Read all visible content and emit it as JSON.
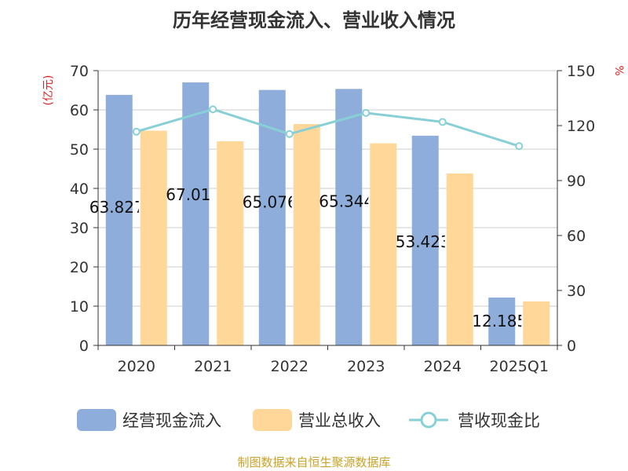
{
  "chart_data": {
    "type": "bar",
    "title": "历年经营现金流入、营业收入情况",
    "categories": [
      "2020",
      "2021",
      "2022",
      "2023",
      "2024",
      "2025Q1"
    ],
    "series": [
      {
        "name": "经营现金流入",
        "kind": "bar",
        "axis": "left",
        "color": "#8eaddb",
        "values": [
          63.827,
          67.01,
          65.076,
          65.344,
          53.423,
          12.185
        ],
        "labels": [
          "63.827",
          "67.01",
          "65.076",
          "65.344",
          "53.423",
          "12.185"
        ]
      },
      {
        "name": "营业总收入",
        "kind": "bar",
        "axis": "left",
        "color": "#ffd899",
        "values": [
          54.7,
          52.0,
          56.4,
          51.5,
          43.8,
          11.2
        ]
      },
      {
        "name": "营收现金比",
        "kind": "line",
        "axis": "right",
        "color": "#88d0d6",
        "values": [
          116.7,
          128.9,
          115.4,
          126.9,
          122.0,
          108.8
        ]
      }
    ],
    "y_left": {
      "label": "(亿元)",
      "min": 0,
      "max": 70,
      "ticks": [
        "0",
        "10",
        "20",
        "30",
        "40",
        "50",
        "60",
        "70"
      ]
    },
    "y_right": {
      "label": "%",
      "min": 0,
      "max": 150,
      "ticks": [
        "0",
        "30",
        "60",
        "90",
        "120",
        "150"
      ]
    },
    "grid": true,
    "legend_position": "bottom",
    "unit_color": "#e02020"
  },
  "source_text": "制图数据来自恒生聚源数据库",
  "source_color": "#c9a227"
}
